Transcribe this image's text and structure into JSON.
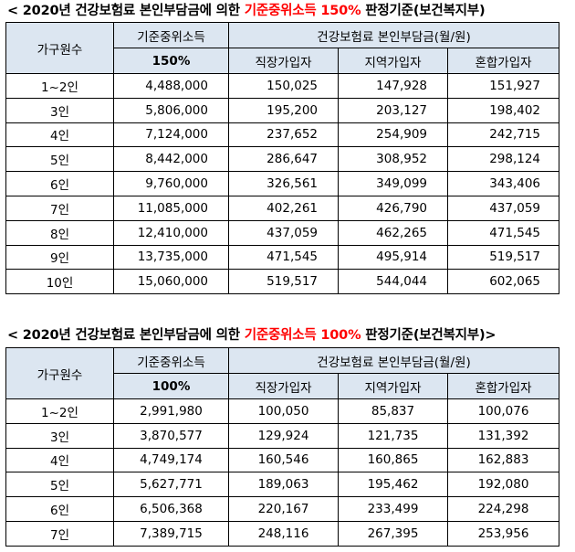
{
  "tables": [
    {
      "title": {
        "prefix": "< 2020년 건강보험료 본인부담금에 의한 ",
        "highlight": "기준중위소득 150%",
        "suffix": " 판정기준(보건복지부)"
      },
      "headers": {
        "household": "가구원수",
        "income_label": "기준중위소득",
        "income_pct": "150%",
        "premium_group": "건강보험료 본인부담금(월/원)",
        "employee": "직장가입자",
        "regional": "지역가입자",
        "mixed": "혼합가입자"
      },
      "rows": [
        [
          "1~2인",
          "4,488,000",
          "150,025",
          "147,928",
          "151,927"
        ],
        [
          "3인",
          "5,806,000",
          "195,200",
          "203,127",
          "198,402"
        ],
        [
          "4인",
          "7,124,000",
          "237,652",
          "254,909",
          "242,715"
        ],
        [
          "5인",
          "8,442,000",
          "286,647",
          "308,952",
          "298,124"
        ],
        [
          "6인",
          "9,760,000",
          "326,561",
          "349,099",
          "343,406"
        ],
        [
          "7인",
          "11,085,000",
          "402,261",
          "426,790",
          "437,059"
        ],
        [
          "8인",
          "12,410,000",
          "437,059",
          "462,265",
          "471,545"
        ],
        [
          "9인",
          "13,735,000",
          "471,545",
          "495,914",
          "519,517"
        ],
        [
          "10인",
          "15,060,000",
          "519,517",
          "544,044",
          "602,065"
        ]
      ]
    },
    {
      "title": {
        "prefix": "< 2020년 건강보험료 본인부담금에 의한 ",
        "highlight": "기준중위소득 100%",
        "suffix": " 판정기준(보건복지부)>"
      },
      "headers": {
        "household": "가구원수",
        "income_label": "기준중위소득",
        "income_pct": "100%",
        "premium_group": "건강보험료 본인부담금(월/원)",
        "employee": "직장가입자",
        "regional": "지역가입자",
        "mixed": "혼합가입자"
      },
      "rows": [
        [
          "1~2인",
          "2,991,980",
          "100,050",
          "85,837",
          "100,076"
        ],
        [
          "3인",
          "3,870,577",
          "129,924",
          "121,735",
          "131,392"
        ],
        [
          "4인",
          "4,749,174",
          "160,546",
          "160,865",
          "162,883"
        ],
        [
          "5인",
          "5,627,771",
          "189,063",
          "195,462",
          "192,080"
        ],
        [
          "6인",
          "6,506,368",
          "220,167",
          "233,499",
          "224,298"
        ],
        [
          "7인",
          "7,389,715",
          "248,116",
          "267,395",
          "253,956"
        ]
      ]
    }
  ],
  "colors": {
    "header_bg": "#dce6f1",
    "highlight": "#ff0000"
  }
}
